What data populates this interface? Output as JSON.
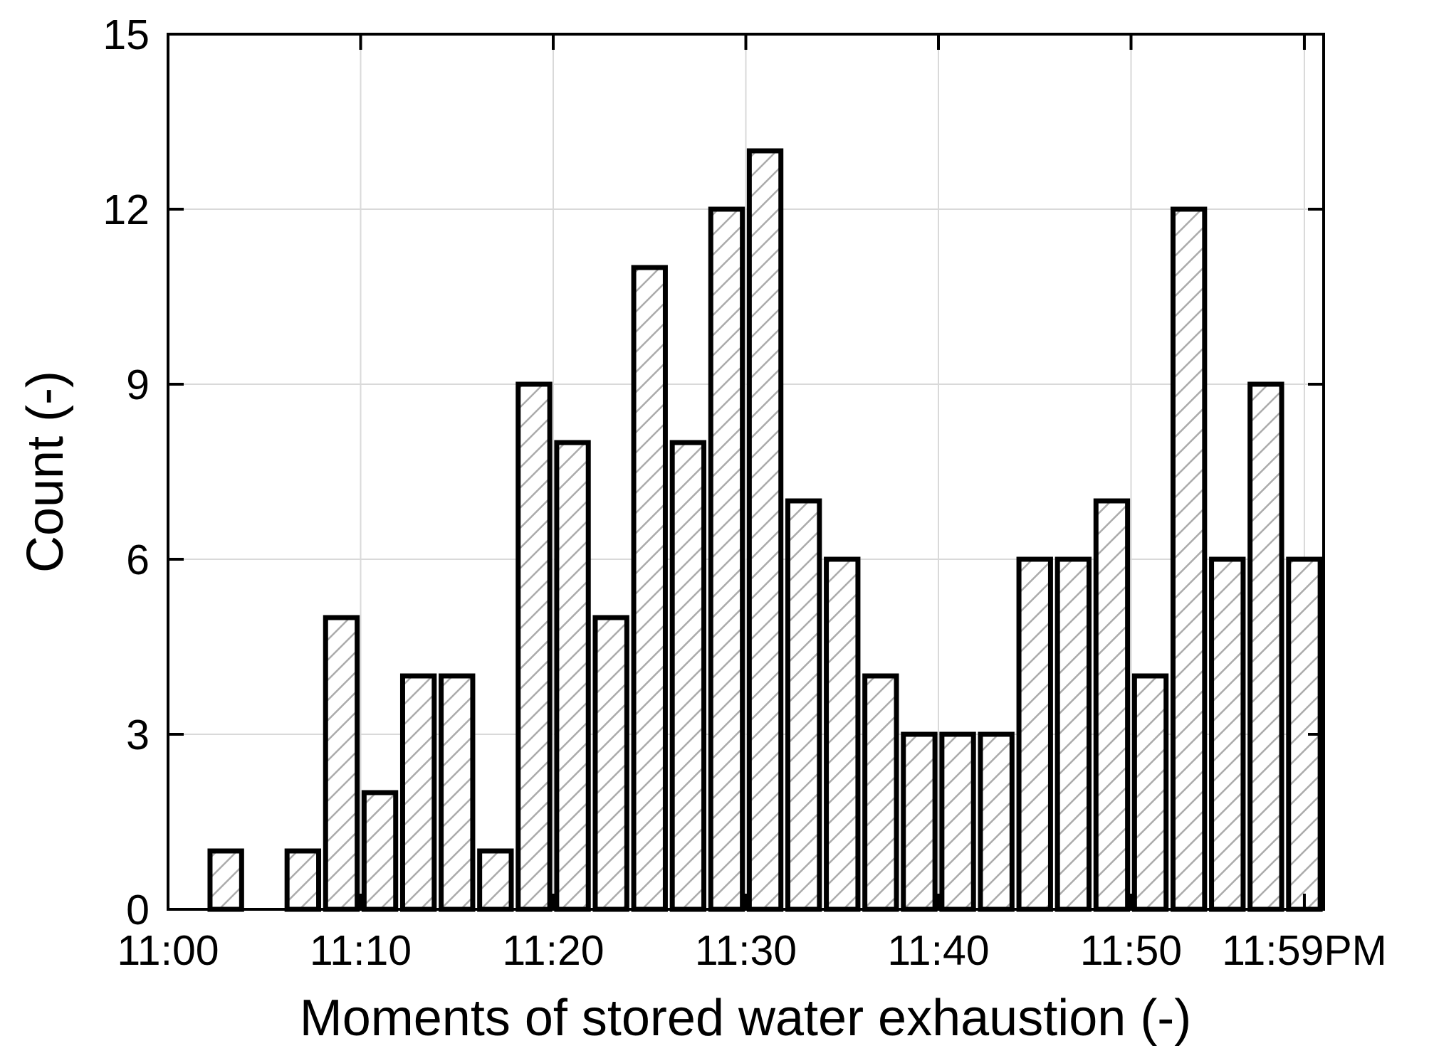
{
  "chart_data": {
    "type": "histogram",
    "x_label": "Moments of stored water exhaustion (-)",
    "y_label": "Count (-)",
    "bins": [
      0,
      2,
      4,
      6,
      8,
      10,
      12,
      14,
      16,
      18,
      20,
      22,
      24,
      26,
      28,
      30,
      32,
      34,
      36,
      38,
      40,
      42,
      44,
      46,
      48,
      50,
      52,
      54,
      56,
      58,
      60
    ],
    "values": [
      0,
      1,
      0,
      1,
      5,
      2,
      4,
      4,
      1,
      9,
      8,
      5,
      11,
      8,
      12,
      13,
      7,
      6,
      4,
      3,
      3,
      3,
      6,
      6,
      7,
      4,
      12,
      6,
      9,
      6
    ],
    "color": "#ababab",
    "edge_color": "#000000",
    "hatch": true,
    "grid": true,
    "xlim": [
      0,
      60
    ],
    "xticks": [
      {
        "value": 0,
        "label": "11:00"
      },
      {
        "value": 10,
        "label": "11:10"
      },
      {
        "value": 20,
        "label": "11:20"
      },
      {
        "value": 30,
        "label": "11:30"
      },
      {
        "value": 40,
        "label": "11:40"
      },
      {
        "value": 50,
        "label": "11:50"
      },
      {
        "value": 59,
        "label": "11:59PM"
      }
    ],
    "ylim": [
      0,
      15
    ],
    "yticks": [
      0,
      3,
      6,
      9,
      12,
      15
    ]
  }
}
